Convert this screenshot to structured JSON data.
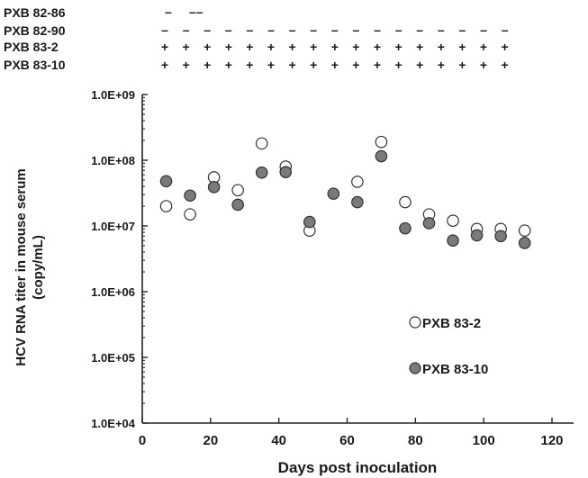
{
  "chart_data": {
    "type": "scatter",
    "xlabel": "Days post inoculation",
    "ylabel_line1": "HCV RNA titer in mouse serum",
    "ylabel_line2": "(copy/mL)",
    "x_ticks": [
      "0",
      "20",
      "40",
      "60",
      "80",
      "100",
      "120"
    ],
    "x_tick_values": [
      0,
      20,
      40,
      60,
      80,
      100,
      120
    ],
    "y_ticks": [
      "1.0E+04",
      "1.0E+05",
      "1.0E+06",
      "1.0E+07",
      "1.0E+08",
      "1.0E+09"
    ],
    "y_tick_exponents": [
      4,
      5,
      6,
      7,
      8,
      9
    ],
    "xlim": [
      0,
      120
    ],
    "ylim": [
      10000,
      1000000000
    ],
    "y_scale": "log",
    "grid": false,
    "legend_position": "lower-right",
    "series": [
      {
        "name": "PXB 83-2",
        "marker": "open-circle",
        "color": "#ffffff",
        "stroke": "#333333",
        "points": [
          [
            7,
            20000000
          ],
          [
            14,
            15000000
          ],
          [
            21,
            55000000
          ],
          [
            28,
            35000000
          ],
          [
            35,
            180000000
          ],
          [
            42,
            80000000
          ],
          [
            49,
            8500000
          ],
          [
            63,
            47000000
          ],
          [
            70,
            190000000
          ],
          [
            77,
            23000000
          ],
          [
            84,
            15000000
          ],
          [
            91,
            12000000
          ],
          [
            98,
            9000000
          ],
          [
            105,
            9000000
          ],
          [
            112,
            8500000
          ]
        ]
      },
      {
        "name": "PXB 83-10",
        "marker": "filled-circle",
        "color": "#7a7a7a",
        "stroke": "#333333",
        "points": [
          [
            7,
            48000000
          ],
          [
            14,
            29000000
          ],
          [
            21,
            39000000
          ],
          [
            28,
            21000000
          ],
          [
            35,
            65000000
          ],
          [
            42,
            66000000
          ],
          [
            49,
            11500000
          ],
          [
            56,
            31000000
          ],
          [
            63,
            23000000
          ],
          [
            70,
            115000000
          ],
          [
            77,
            9200000
          ],
          [
            84,
            11000000
          ],
          [
            91,
            6000000
          ],
          [
            98,
            7200000
          ],
          [
            105,
            7000000
          ],
          [
            112,
            5500000
          ]
        ]
      }
    ],
    "status_table": {
      "rows": [
        {
          "label": "PXB 82-86",
          "marks": [
            "–",
            "––"
          ]
        },
        {
          "label": "PXB 82-90",
          "marks": [
            "–",
            "–",
            "–",
            "–",
            "–",
            "–",
            "–",
            "–",
            "–",
            "–",
            "–",
            "–",
            "–",
            "–",
            "–",
            "–",
            "–"
          ]
        },
        {
          "label": "PXB 83-2",
          "marks": [
            "+",
            "+",
            "+",
            "+",
            "+",
            "+",
            "+",
            "+",
            "+",
            "+",
            "+",
            "+",
            "+",
            "+",
            "+",
            "+",
            "+"
          ]
        },
        {
          "label": "PXB 83-10",
          "marks": [
            "+",
            "+",
            "+",
            "+",
            "+",
            "+",
            "+",
            "+",
            "+",
            "+",
            "+",
            "+",
            "+",
            "+",
            "+",
            "+",
            "+"
          ]
        }
      ]
    }
  }
}
